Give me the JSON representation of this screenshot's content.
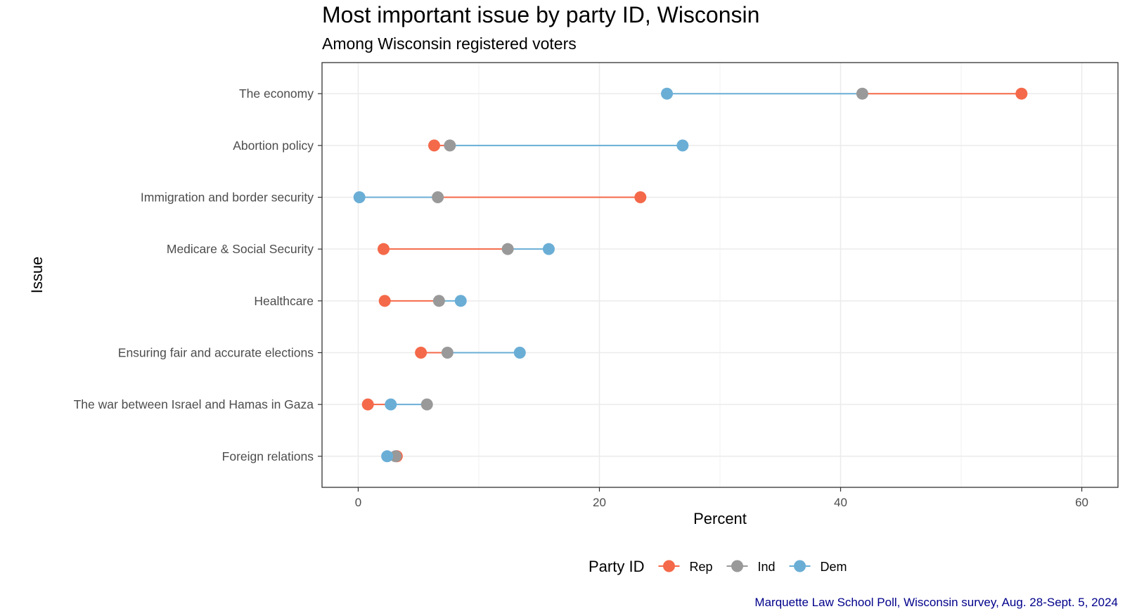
{
  "chart_data": {
    "type": "dumbbell",
    "title": "Most important issue by party ID, Wisconsin",
    "subtitle": "Among Wisconsin registered voters",
    "xlabel": "Percent",
    "ylabel": "Issue",
    "xlim": [
      -3,
      63
    ],
    "x_ticks": [
      0,
      20,
      40,
      60
    ],
    "grid": true,
    "legend_position": "bottom",
    "legend_title": "Party ID",
    "categories": [
      "The economy",
      "Abortion policy",
      "Immigration and border security",
      "Medicare & Social Security",
      "Healthcare",
      "Ensuring fair and accurate elections",
      "The war between Israel and Hamas in Gaza",
      "Foreign relations"
    ],
    "series": [
      {
        "name": "Rep",
        "color": "#f4694a",
        "values": [
          55.0,
          6.3,
          23.4,
          2.1,
          2.2,
          5.2,
          0.8,
          3.2
        ]
      },
      {
        "name": "Ind",
        "color": "#999999",
        "values": [
          41.8,
          7.6,
          6.6,
          12.4,
          6.7,
          7.4,
          5.7,
          3.1
        ]
      },
      {
        "name": "Dem",
        "color": "#6aaed6",
        "values": [
          25.6,
          26.9,
          0.1,
          15.8,
          8.5,
          13.4,
          2.7,
          2.4
        ]
      }
    ],
    "caption": "Marquette Law School Poll, Wisconsin survey, Aug. 28-Sept. 5, 2024"
  }
}
